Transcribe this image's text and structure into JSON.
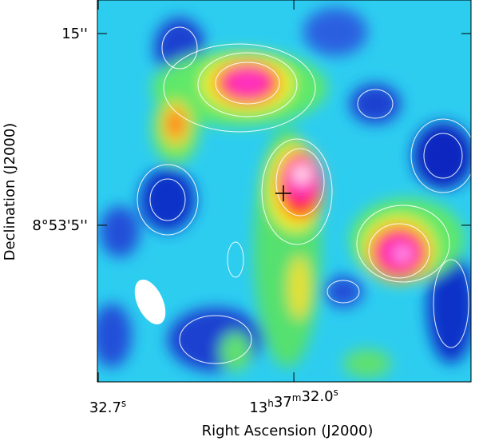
{
  "chart_data": {
    "type": "image",
    "x_label": "Right Ascension (J2000)",
    "y_label": "Declination (J2000)",
    "xlim": [
      32.703,
      31.366
    ],
    "xticks": [
      {
        "value": 32.7,
        "label": "32.7s"
      },
      {
        "value": 32.0,
        "label": "13h37m32.0s"
      }
    ],
    "ylim": [
      -3.17,
      16.75
    ],
    "yticks": [
      {
        "value": 15,
        "label": "15''"
      },
      {
        "value": 5,
        "label": "8°53'5''"
      }
    ]
  }
}
